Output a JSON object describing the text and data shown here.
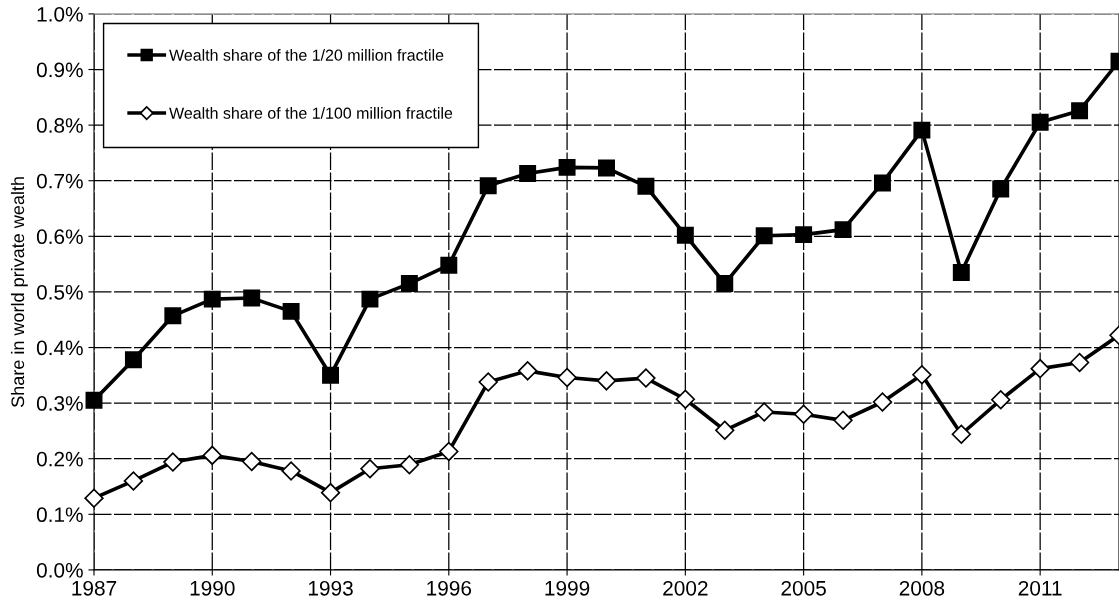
{
  "chart_data": {
    "type": "line",
    "ylabel": "Share in world private wealth",
    "x": [
      1987,
      1988,
      1989,
      1990,
      1991,
      1992,
      1993,
      1994,
      1995,
      1996,
      1997,
      1998,
      1999,
      2000,
      2001,
      2002,
      2003,
      2004,
      2005,
      2006,
      2007,
      2008,
      2009,
      2010,
      2011,
      2012,
      2013
    ],
    "series": [
      {
        "name": "Wealth share of the 1/20 million fractile",
        "color": "#000000",
        "marker": "square",
        "values": [
          0.305,
          0.378,
          0.457,
          0.487,
          0.489,
          0.465,
          0.35,
          0.487,
          0.515,
          0.548,
          0.691,
          0.713,
          0.724,
          0.723,
          0.69,
          0.602,
          0.515,
          0.601,
          0.603,
          0.612,
          0.696,
          0.791,
          0.535,
          0.685,
          0.805,
          0.826,
          0.915
        ]
      },
      {
        "name": "Wealth share of the 1/100 million fractile",
        "color": "#000000",
        "marker": "diamond",
        "values": [
          0.129,
          0.16,
          0.194,
          0.206,
          0.195,
          0.178,
          0.139,
          0.182,
          0.189,
          0.213,
          0.338,
          0.358,
          0.346,
          0.34,
          0.345,
          0.307,
          0.251,
          0.284,
          0.28,
          0.269,
          0.302,
          0.351,
          0.244,
          0.306,
          0.362,
          0.373,
          0.422
        ]
      }
    ],
    "xlim": [
      1987,
      2013
    ],
    "xticks": [
      1987,
      1990,
      1993,
      1996,
      1999,
      2002,
      2005,
      2008,
      2011
    ],
    "ylim": [
      0,
      1.0
    ],
    "yticks": [
      {
        "value": 0,
        "label": "0.0%"
      },
      {
        "value": 0.1,
        "label": "0.1%"
      },
      {
        "value": 0.2,
        "label": "0.2%"
      },
      {
        "value": 0.3,
        "label": "0.3%"
      },
      {
        "value": 0.4,
        "label": "0.4%"
      },
      {
        "value": 0.5,
        "label": "0.5%"
      },
      {
        "value": 0.6,
        "label": "0.6%"
      },
      {
        "value": 0.7,
        "label": "0.7%"
      },
      {
        "value": 0.8,
        "label": "0.8%"
      },
      {
        "value": 0.9,
        "label": "0.9%"
      },
      {
        "value": 1.0,
        "label": "1.0%"
      }
    ],
    "grid": true,
    "legend": "top left",
    "line_style": "solid"
  }
}
